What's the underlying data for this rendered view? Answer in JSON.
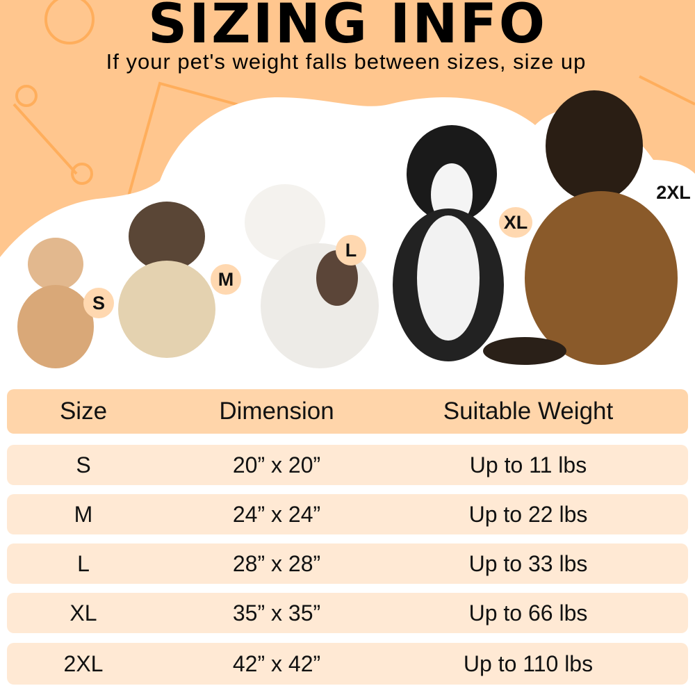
{
  "header": {
    "title": "SIZING INFO",
    "subtitle": "If your pet's weight falls between sizes, size up"
  },
  "colors": {
    "background": "#FFC68E",
    "doodle": "#FFAE5C",
    "table_header": "#FFD5AA",
    "table_row": "#FFE9D4",
    "badge": "#FFD8B0"
  },
  "badges": [
    "S",
    "M",
    "L",
    "XL",
    "2XL"
  ],
  "table": {
    "headers": [
      "Size",
      "Dimension",
      "Suitable Weight"
    ],
    "rows": [
      [
        "S",
        "20” x 20”",
        "Up to 11 lbs"
      ],
      [
        "M",
        "24” x 24”",
        "Up to 22 lbs"
      ],
      [
        "L",
        "28” x 28”",
        "Up to 33 lbs"
      ],
      [
        "XL",
        "35” x 35”",
        "Up to 66 lbs"
      ],
      [
        "2XL",
        "42” x 42”",
        "Up to 110 lbs"
      ]
    ]
  }
}
